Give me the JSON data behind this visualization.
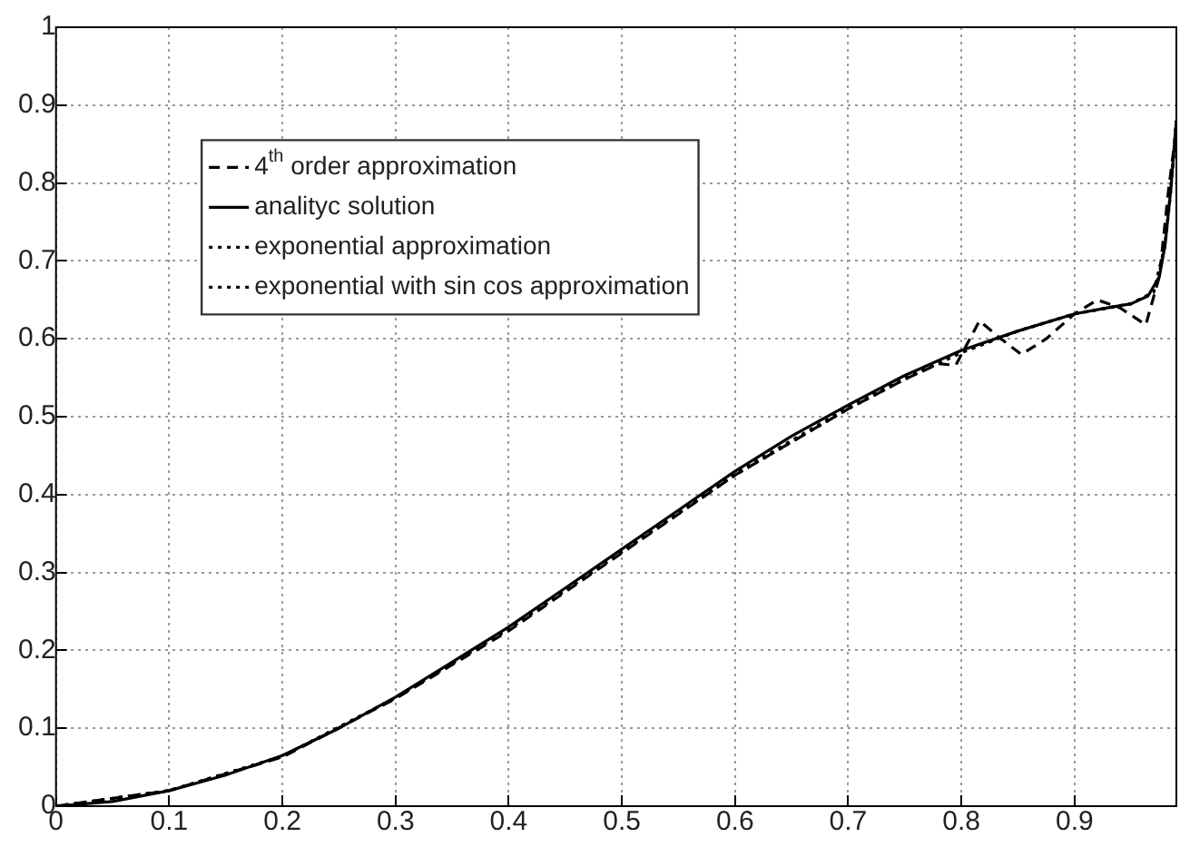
{
  "chart_data": {
    "type": "line",
    "xlim": [
      0,
      0.99
    ],
    "xticks": [
      0,
      0.1,
      0.2,
      0.3,
      0.4,
      0.5,
      0.6,
      0.7,
      0.8,
      0.9
    ],
    "ylim": [
      0,
      1
    ],
    "yticks": [
      0,
      0.1,
      0.2,
      0.3,
      0.4,
      0.5,
      0.6,
      0.7,
      0.8,
      0.9,
      1
    ],
    "grid": true,
    "legend": "top left",
    "marker": "none",
    "series": [
      {
        "name": "4$^{th}$ order approximation",
        "color": "#000000",
        "line_style": "dashed",
        "x": [
          0,
          0.1,
          0.2,
          0.3,
          0.4,
          0.5,
          0.6,
          0.7,
          0.75,
          0.78,
          0.795,
          0.816,
          0.835,
          0.853,
          0.875,
          0.9,
          0.92,
          0.94,
          0.963,
          0.975,
          0.983,
          0.99
        ],
        "values": [
          0,
          0.02,
          0.063,
          0.138,
          0.225,
          0.325,
          0.425,
          0.51,
          0.548,
          0.568,
          0.566,
          0.623,
          0.6,
          0.58,
          0.6,
          0.632,
          0.65,
          0.64,
          0.618,
          0.68,
          0.79,
          0.87
        ]
      },
      {
        "name": "analityc solution",
        "color": "#000000",
        "line_style": "solid",
        "x": [
          0,
          0.05,
          0.1,
          0.15,
          0.2,
          0.25,
          0.3,
          0.35,
          0.4,
          0.45,
          0.5,
          0.55,
          0.6,
          0.65,
          0.7,
          0.75,
          0.8,
          0.85,
          0.9,
          0.93,
          0.95,
          0.965,
          0.975,
          0.98,
          0.985,
          0.99
        ],
        "values": [
          0,
          0.006,
          0.02,
          0.04,
          0.065,
          0.1,
          0.14,
          0.185,
          0.23,
          0.28,
          0.33,
          0.38,
          0.43,
          0.475,
          0.515,
          0.553,
          0.585,
          0.61,
          0.632,
          0.64,
          0.645,
          0.655,
          0.68,
          0.72,
          0.79,
          0.88
        ]
      },
      {
        "name": "exponential approximation",
        "color": "#000000",
        "line_style": "dotted",
        "x": [
          0,
          0.1,
          0.2,
          0.3,
          0.4,
          0.5,
          0.6,
          0.7,
          0.75,
          0.8,
          0.85,
          0.9,
          0.95,
          0.97,
          0.98,
          0.985,
          0.99
        ],
        "values": [
          0,
          0.02,
          0.064,
          0.139,
          0.227,
          0.326,
          0.425,
          0.51,
          0.548,
          0.582,
          0.61,
          0.632,
          0.645,
          0.66,
          0.72,
          0.79,
          0.88
        ]
      },
      {
        "name": "exponential with sin cos approximation",
        "color": "#000000",
        "line_style": "dotted",
        "x": [
          0,
          0.1,
          0.2,
          0.3,
          0.4,
          0.5,
          0.6,
          0.7,
          0.75,
          0.8,
          0.85,
          0.9,
          0.95,
          0.97,
          0.98,
          0.985,
          0.99
        ],
        "values": [
          0,
          0.02,
          0.064,
          0.139,
          0.228,
          0.328,
          0.427,
          0.512,
          0.55,
          0.583,
          0.61,
          0.632,
          0.645,
          0.66,
          0.72,
          0.79,
          0.88
        ]
      }
    ]
  }
}
